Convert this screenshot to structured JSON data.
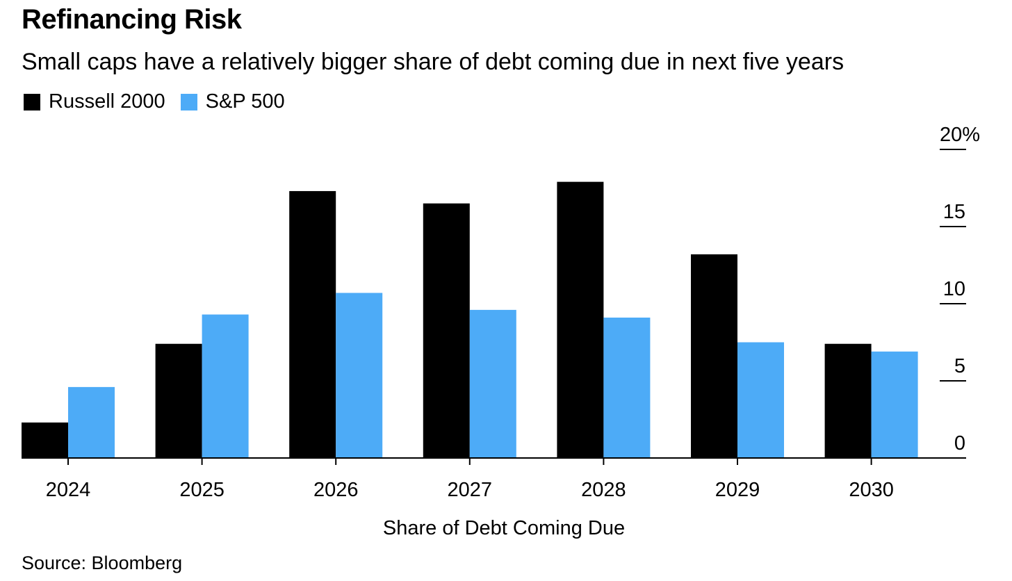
{
  "header": {
    "title": "Refinancing Risk",
    "subtitle": "Small caps have a relatively bigger share of debt coming due in next five years"
  },
  "footer": {
    "source": "Source: Bloomberg"
  },
  "chart_data": {
    "type": "bar",
    "title": "Refinancing Risk",
    "subtitle": "Small caps have a relatively bigger share of debt coming due in next five years",
    "xlabel": "Share of Debt Coming Due",
    "ylabel": "",
    "categories": [
      "2024",
      "2025",
      "2026",
      "2027",
      "2028",
      "2029",
      "2030"
    ],
    "series": [
      {
        "name": "Russell 2000",
        "color": "#000000",
        "values": [
          2.3,
          7.4,
          17.3,
          16.5,
          17.9,
          13.2,
          7.4
        ]
      },
      {
        "name": "S&P 500",
        "color": "#4dabf7",
        "values": [
          4.6,
          9.3,
          10.7,
          9.6,
          9.1,
          7.5,
          6.9
        ]
      }
    ],
    "ylim": [
      0,
      20
    ],
    "yticks": [
      {
        "value": 0,
        "label": "0"
      },
      {
        "value": 5,
        "label": "5"
      },
      {
        "value": 10,
        "label": "10"
      },
      {
        "value": 15,
        "label": "15"
      },
      {
        "value": 20,
        "label": "20%"
      }
    ],
    "axis_position": "right",
    "legend_position": "top-left",
    "grid": false
  }
}
